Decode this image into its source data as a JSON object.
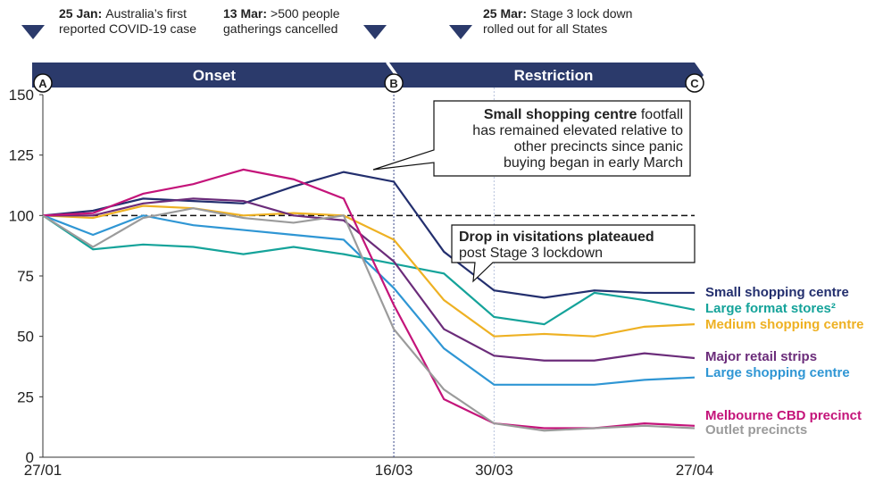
{
  "chart_data": {
    "type": "line",
    "categories": [
      "27/01",
      null,
      null,
      null,
      null,
      null,
      null,
      "16/03",
      null,
      "30/03",
      null,
      null,
      null,
      "27/04"
    ],
    "ylim": [
      0,
      150
    ],
    "yticks": [
      0,
      25,
      50,
      75,
      100,
      125,
      150
    ],
    "reference_line": 100,
    "vlines": [
      "16/03",
      "30/03"
    ],
    "milestones": [
      {
        "label": "A",
        "x": "27/01"
      },
      {
        "label": "B",
        "x": "16/03"
      },
      {
        "label": "C",
        "x": "27/04"
      }
    ],
    "phases": [
      "Onset",
      "Restriction"
    ],
    "events": [
      {
        "date": "25 Jan:",
        "lines": [
          "Australia’s first",
          "reported COVID-19 case"
        ]
      },
      {
        "date": "13 Mar:",
        "lines": [
          ">500 people",
          "gatherings cancelled"
        ]
      },
      {
        "date": "25 Mar:",
        "lines": [
          "Stage 3 lock down",
          "rolled out for all States"
        ]
      }
    ],
    "annotations": [
      {
        "bold": "Small shopping centre",
        "lines": [
          " footfall",
          "has remained elevated relative to",
          "other precincts since panic",
          "buying began in early March"
        ]
      },
      {
        "bold": "Drop in visitations plateaued",
        "lines": [
          "post Stage 3 lockdown"
        ]
      }
    ],
    "series": [
      {
        "name": "Small shopping centre",
        "color": "#232f6e",
        "values": [
          100,
          102,
          107,
          106,
          105,
          112,
          118,
          114,
          85,
          69,
          66,
          69,
          68,
          68
        ]
      },
      {
        "name": "Large format stores²",
        "color": "#15a39a",
        "values": [
          100,
          86,
          88,
          87,
          84,
          87,
          84,
          80,
          76,
          58,
          55,
          68,
          65,
          61
        ]
      },
      {
        "name": "Medium shopping centre",
        "color": "#eeb123",
        "values": [
          100,
          99,
          104,
          103,
          100,
          101,
          100,
          90,
          65,
          50,
          51,
          50,
          54,
          55
        ]
      },
      {
        "name": "Major retail strips",
        "color": "#6b2c7a",
        "values": [
          100,
          100,
          105,
          107,
          106,
          100,
          98,
          81,
          53,
          42,
          40,
          40,
          43,
          41
        ]
      },
      {
        "name": "Large shopping centre",
        "color": "#2f96d4",
        "values": [
          100,
          92,
          100,
          96,
          94,
          92,
          90,
          70,
          45,
          30,
          30,
          30,
          32,
          33
        ]
      },
      {
        "name": "Melbourne CBD precinct",
        "color": "#c4147a",
        "values": [
          100,
          101,
          109,
          113,
          119,
          115,
          107,
          63,
          24,
          14,
          12,
          12,
          14,
          13
        ]
      },
      {
        "name": "Outlet precincts",
        "color": "#9b9b9b",
        "values": [
          100,
          87,
          99,
          103,
          99,
          97,
          100,
          53,
          28,
          14,
          11,
          12,
          13,
          12
        ]
      }
    ]
  }
}
